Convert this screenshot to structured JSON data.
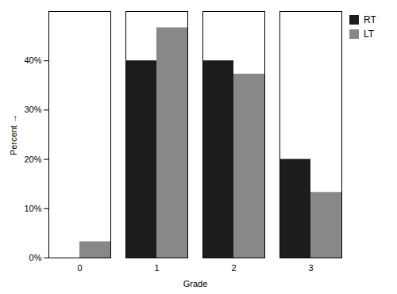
{
  "chart_data": {
    "type": "bar",
    "categories": [
      "0",
      "1",
      "2",
      "3"
    ],
    "series": [
      {
        "name": "RT",
        "color": "#1c1c1c",
        "values": [
          0.0,
          40.0,
          40.0,
          20.0
        ]
      },
      {
        "name": "LT",
        "color": "#888888",
        "values": [
          3.3,
          46.7,
          37.3,
          13.3
        ]
      }
    ],
    "xlabel": "Grade",
    "ylabel": "Percent",
    "ylim": [
      0,
      50
    ],
    "yticks": [
      {
        "value": 0,
        "label": "0%"
      },
      {
        "value": 10,
        "label": "10%"
      },
      {
        "value": 20,
        "label": "20%"
      },
      {
        "value": 30,
        "label": "30%"
      },
      {
        "value": 40,
        "label": "40%"
      }
    ],
    "grid": false,
    "legend": "right"
  }
}
